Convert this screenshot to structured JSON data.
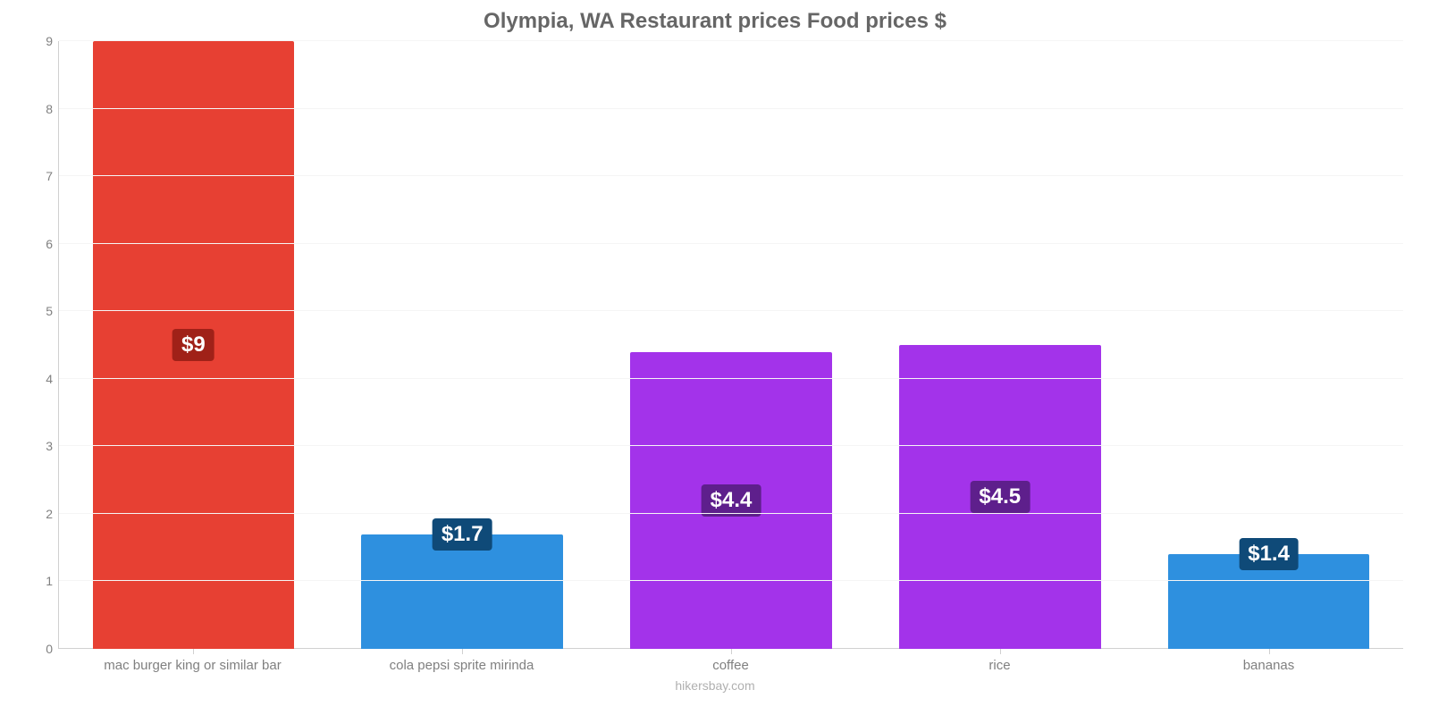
{
  "chart": {
    "type": "bar",
    "title": "Olympia, WA Restaurant prices Food prices $",
    "title_fontsize": 24,
    "title_color": "#666666",
    "caption": "hikersbay.com",
    "caption_color": "#b0b0b0",
    "background_color": "#ffffff",
    "grid_color": "#f5f5f5",
    "axis_line_color": "#d0d0d0",
    "axis_text_color": "#808080",
    "axis_fontsize": 15,
    "ylim": [
      0,
      9
    ],
    "yticks": [
      0,
      1,
      2,
      3,
      4,
      5,
      6,
      7,
      8,
      9
    ],
    "bar_width_pct": 75,
    "label_fontsize": 24,
    "label_text_color": "#ffffff",
    "label_radius": 4,
    "categories": [
      "mac burger king or similar bar",
      "cola pepsi sprite mirinda",
      "coffee",
      "rice",
      "bananas"
    ],
    "values": [
      9,
      1.7,
      4.4,
      4.5,
      1.4
    ],
    "value_labels": [
      "$9",
      "$1.7",
      "$4.4",
      "$4.5",
      "$1.4"
    ],
    "bar_colors": [
      "#e74033",
      "#2e90df",
      "#a333ea",
      "#a333ea",
      "#2e90df"
    ],
    "label_bg_colors": [
      "#a02118",
      "#0f4a78",
      "#5e1f8c",
      "#5e1f8c",
      "#0f4a78"
    ]
  }
}
